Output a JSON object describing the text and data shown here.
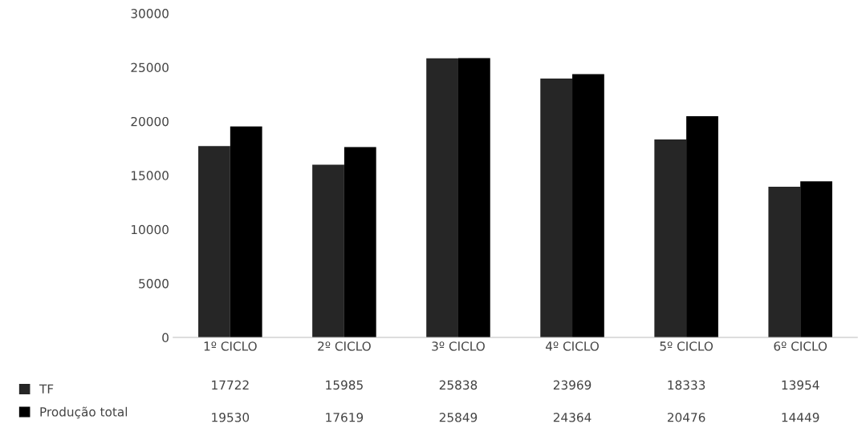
{
  "chart_data": {
    "type": "bar",
    "categories": [
      "1º CICLO",
      "2º CICLO",
      "3º CICLO",
      "4º CICLO",
      "5º CICLO",
      "6º CICLO"
    ],
    "series": [
      {
        "name": "TF",
        "color": "#262626",
        "values": [
          17722,
          15985,
          25838,
          23969,
          18333,
          13954
        ]
      },
      {
        "name": "Produção total",
        "color": "#000000",
        "values": [
          19530,
          17619,
          25849,
          24364,
          20476,
          14449
        ]
      }
    ],
    "ylim": [
      0,
      30000
    ],
    "yticks": [
      0,
      5000,
      10000,
      15000,
      20000,
      25000,
      30000
    ],
    "grid": false,
    "legend": "bottom",
    "data_labels": true
  }
}
